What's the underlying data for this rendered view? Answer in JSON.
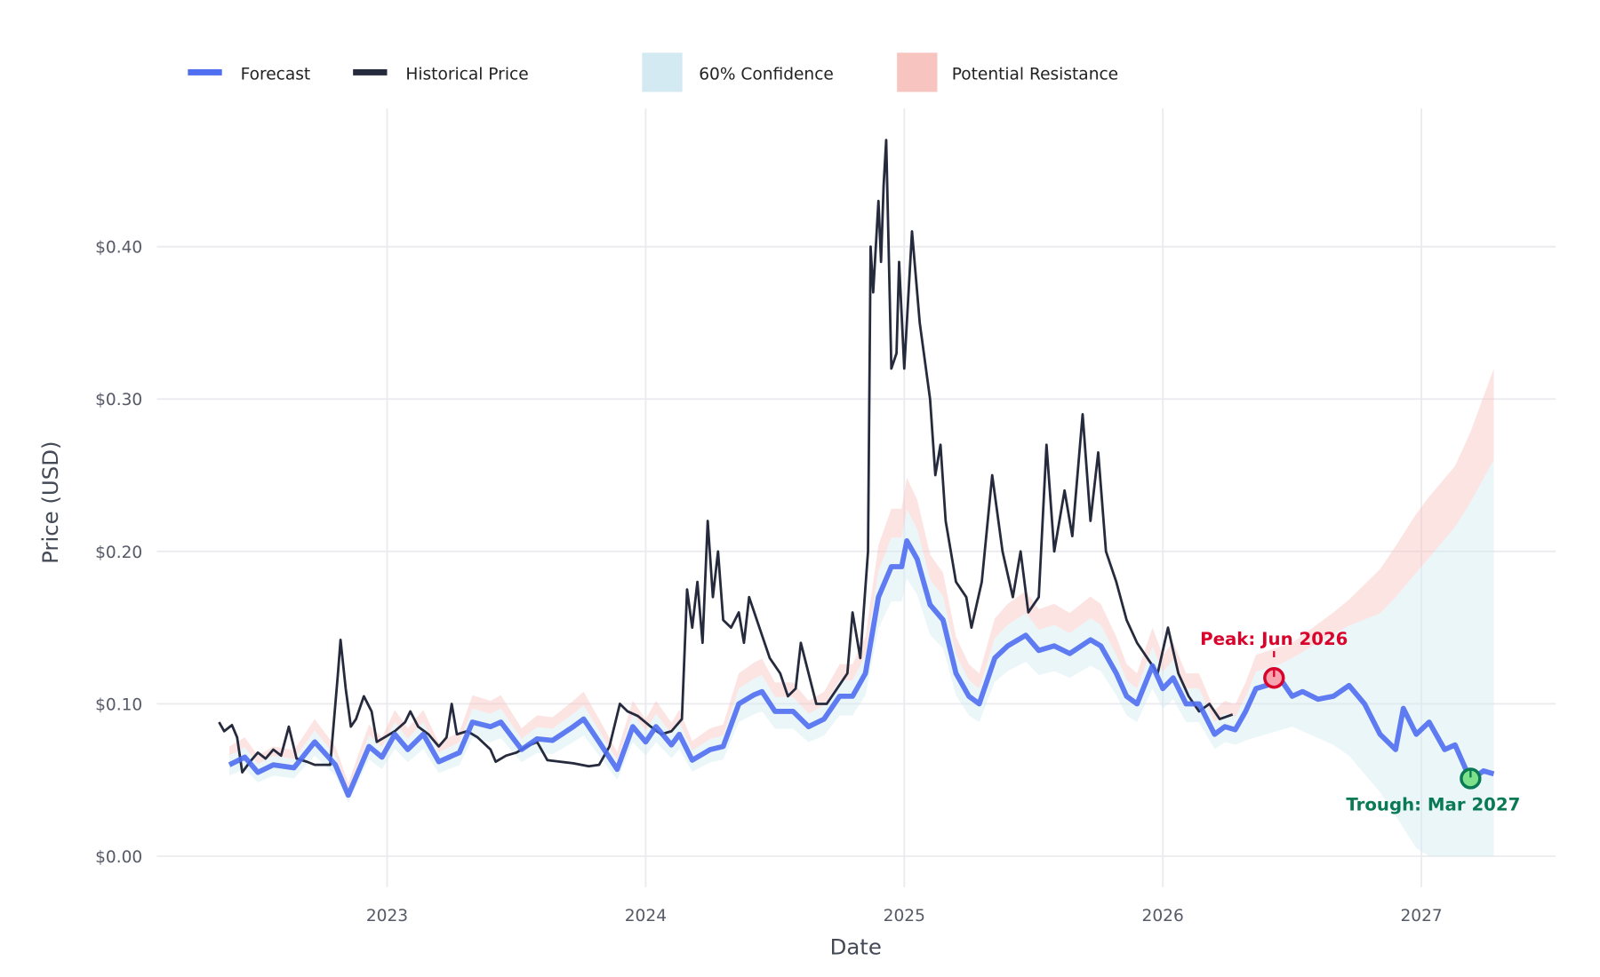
{
  "chart_data": {
    "type": "line",
    "title": "",
    "xlabel": "Date",
    "ylabel": "Price (USD)",
    "xlim": [
      2022.12,
      2027.52
    ],
    "ylim": [
      -0.025,
      0.49
    ],
    "grid": true,
    "legend_placement": "top-left",
    "x_ticks": [
      {
        "value": 2023,
        "label": "2023"
      },
      {
        "value": 2024,
        "label": "2024"
      },
      {
        "value": 2025,
        "label": "2025"
      },
      {
        "value": 2026,
        "label": "2026"
      },
      {
        "value": 2027,
        "label": "2027"
      }
    ],
    "y_ticks": [
      {
        "value": 0.0,
        "label": "$0.00"
      },
      {
        "value": 0.1,
        "label": "$0.10"
      },
      {
        "value": 0.2,
        "label": "$0.20"
      },
      {
        "value": 0.3,
        "label": "$0.30"
      },
      {
        "value": 0.4,
        "label": "$0.40"
      }
    ],
    "legend": [
      {
        "name": "Forecast",
        "kind": "line",
        "color": "#4f6ef0"
      },
      {
        "name": "Historical Price",
        "kind": "line",
        "color": "#262a3d"
      },
      {
        "name": "60% Confidence",
        "kind": "band",
        "color": "#d3eaf2"
      },
      {
        "name": "Potential Resistance",
        "kind": "band",
        "color": "#f8c4c0"
      }
    ],
    "series": [
      {
        "name": "Historical Price",
        "color": "#262a3d",
        "points": [
          [
            2022.35,
            0.088
          ],
          [
            2022.37,
            0.082
          ],
          [
            2022.4,
            0.086
          ],
          [
            2022.42,
            0.078
          ],
          [
            2022.44,
            0.055
          ],
          [
            2022.47,
            0.062
          ],
          [
            2022.5,
            0.068
          ],
          [
            2022.53,
            0.064
          ],
          [
            2022.56,
            0.07
          ],
          [
            2022.59,
            0.066
          ],
          [
            2022.62,
            0.085
          ],
          [
            2022.65,
            0.064
          ],
          [
            2022.69,
            0.062
          ],
          [
            2022.72,
            0.06
          ],
          [
            2022.76,
            0.06
          ],
          [
            2022.78,
            0.06
          ],
          [
            2022.81,
            0.12
          ],
          [
            2022.82,
            0.142
          ],
          [
            2022.84,
            0.11
          ],
          [
            2022.86,
            0.085
          ],
          [
            2022.88,
            0.09
          ],
          [
            2022.91,
            0.105
          ],
          [
            2022.94,
            0.095
          ],
          [
            2022.96,
            0.075
          ],
          [
            2022.99,
            0.078
          ],
          [
            2023.03,
            0.082
          ],
          [
            2023.07,
            0.088
          ],
          [
            2023.09,
            0.095
          ],
          [
            2023.12,
            0.085
          ],
          [
            2023.16,
            0.08
          ],
          [
            2023.2,
            0.072
          ],
          [
            2023.23,
            0.078
          ],
          [
            2023.25,
            0.1
          ],
          [
            2023.27,
            0.08
          ],
          [
            2023.31,
            0.082
          ],
          [
            2023.35,
            0.078
          ],
          [
            2023.4,
            0.07
          ],
          [
            2023.42,
            0.062
          ],
          [
            2023.46,
            0.066
          ],
          [
            2023.5,
            0.068
          ],
          [
            2023.54,
            0.072
          ],
          [
            2023.58,
            0.075
          ],
          [
            2023.62,
            0.063
          ],
          [
            2023.67,
            0.062
          ],
          [
            2023.72,
            0.061
          ],
          [
            2023.78,
            0.059
          ],
          [
            2023.82,
            0.06
          ],
          [
            2023.86,
            0.072
          ],
          [
            2023.9,
            0.1
          ],
          [
            2023.93,
            0.095
          ],
          [
            2023.97,
            0.092
          ],
          [
            2024.02,
            0.085
          ],
          [
            2024.06,
            0.08
          ],
          [
            2024.1,
            0.082
          ],
          [
            2024.14,
            0.09
          ],
          [
            2024.16,
            0.175
          ],
          [
            2024.18,
            0.15
          ],
          [
            2024.2,
            0.18
          ],
          [
            2024.22,
            0.14
          ],
          [
            2024.24,
            0.22
          ],
          [
            2024.26,
            0.17
          ],
          [
            2024.28,
            0.2
          ],
          [
            2024.3,
            0.155
          ],
          [
            2024.33,
            0.15
          ],
          [
            2024.36,
            0.16
          ],
          [
            2024.38,
            0.14
          ],
          [
            2024.4,
            0.17
          ],
          [
            2024.44,
            0.15
          ],
          [
            2024.48,
            0.13
          ],
          [
            2024.52,
            0.12
          ],
          [
            2024.55,
            0.105
          ],
          [
            2024.58,
            0.11
          ],
          [
            2024.6,
            0.14
          ],
          [
            2024.63,
            0.12
          ],
          [
            2024.66,
            0.1
          ],
          [
            2024.7,
            0.1
          ],
          [
            2024.74,
            0.11
          ],
          [
            2024.78,
            0.12
          ],
          [
            2024.8,
            0.16
          ],
          [
            2024.83,
            0.13
          ],
          [
            2024.86,
            0.2
          ],
          [
            2024.87,
            0.4
          ],
          [
            2024.88,
            0.37
          ],
          [
            2024.9,
            0.43
          ],
          [
            2024.91,
            0.39
          ],
          [
            2024.92,
            0.44
          ],
          [
            2024.93,
            0.47
          ],
          [
            2024.95,
            0.32
          ],
          [
            2024.97,
            0.33
          ],
          [
            2024.98,
            0.39
          ],
          [
            2025.0,
            0.32
          ],
          [
            2025.03,
            0.41
          ],
          [
            2025.06,
            0.35
          ],
          [
            2025.1,
            0.3
          ],
          [
            2025.12,
            0.25
          ],
          [
            2025.14,
            0.27
          ],
          [
            2025.16,
            0.22
          ],
          [
            2025.2,
            0.18
          ],
          [
            2025.24,
            0.17
          ],
          [
            2025.26,
            0.15
          ],
          [
            2025.3,
            0.18
          ],
          [
            2025.34,
            0.25
          ],
          [
            2025.38,
            0.2
          ],
          [
            2025.42,
            0.17
          ],
          [
            2025.45,
            0.2
          ],
          [
            2025.48,
            0.16
          ],
          [
            2025.52,
            0.17
          ],
          [
            2025.55,
            0.27
          ],
          [
            2025.58,
            0.2
          ],
          [
            2025.62,
            0.24
          ],
          [
            2025.65,
            0.21
          ],
          [
            2025.69,
            0.29
          ],
          [
            2025.72,
            0.22
          ],
          [
            2025.75,
            0.265
          ],
          [
            2025.78,
            0.2
          ],
          [
            2025.82,
            0.18
          ],
          [
            2025.86,
            0.155
          ],
          [
            2025.9,
            0.14
          ],
          [
            2025.94,
            0.13
          ],
          [
            2025.98,
            0.12
          ],
          [
            2026.02,
            0.15
          ],
          [
            2026.06,
            0.12
          ],
          [
            2026.1,
            0.105
          ],
          [
            2026.14,
            0.095
          ],
          [
            2026.18,
            0.1
          ],
          [
            2026.22,
            0.09
          ],
          [
            2026.27,
            0.093
          ]
        ]
      },
      {
        "name": "Forecast",
        "color": "#4f6ef0",
        "points": [
          [
            2022.39,
            0.06
          ],
          [
            2022.45,
            0.065
          ],
          [
            2022.5,
            0.055
          ],
          [
            2022.56,
            0.06
          ],
          [
            2022.64,
            0.058
          ],
          [
            2022.72,
            0.075
          ],
          [
            2022.8,
            0.06
          ],
          [
            2022.85,
            0.04
          ],
          [
            2022.93,
            0.072
          ],
          [
            2022.98,
            0.065
          ],
          [
            2023.03,
            0.08
          ],
          [
            2023.08,
            0.07
          ],
          [
            2023.14,
            0.08
          ],
          [
            2023.2,
            0.062
          ],
          [
            2023.28,
            0.068
          ],
          [
            2023.33,
            0.088
          ],
          [
            2023.4,
            0.085
          ],
          [
            2023.44,
            0.088
          ],
          [
            2023.52,
            0.07
          ],
          [
            2023.58,
            0.077
          ],
          [
            2023.64,
            0.076
          ],
          [
            2023.72,
            0.085
          ],
          [
            2023.76,
            0.09
          ],
          [
            2023.82,
            0.075
          ],
          [
            2023.89,
            0.057
          ],
          [
            2023.95,
            0.085
          ],
          [
            2024.0,
            0.075
          ],
          [
            2024.04,
            0.085
          ],
          [
            2024.1,
            0.073
          ],
          [
            2024.13,
            0.08
          ],
          [
            2024.18,
            0.063
          ],
          [
            2024.25,
            0.07
          ],
          [
            2024.3,
            0.072
          ],
          [
            2024.36,
            0.1
          ],
          [
            2024.42,
            0.106
          ],
          [
            2024.45,
            0.108
          ],
          [
            2024.5,
            0.095
          ],
          [
            2024.57,
            0.095
          ],
          [
            2024.63,
            0.085
          ],
          [
            2024.69,
            0.09
          ],
          [
            2024.75,
            0.105
          ],
          [
            2024.8,
            0.105
          ],
          [
            2024.85,
            0.12
          ],
          [
            2024.9,
            0.17
          ],
          [
            2024.95,
            0.19
          ],
          [
            2024.99,
            0.19
          ],
          [
            2025.01,
            0.207
          ],
          [
            2025.05,
            0.195
          ],
          [
            2025.1,
            0.165
          ],
          [
            2025.15,
            0.155
          ],
          [
            2025.2,
            0.12
          ],
          [
            2025.25,
            0.105
          ],
          [
            2025.29,
            0.1
          ],
          [
            2025.35,
            0.13
          ],
          [
            2025.4,
            0.138
          ],
          [
            2025.47,
            0.145
          ],
          [
            2025.52,
            0.135
          ],
          [
            2025.58,
            0.138
          ],
          [
            2025.64,
            0.133
          ],
          [
            2025.72,
            0.142
          ],
          [
            2025.76,
            0.138
          ],
          [
            2025.82,
            0.12
          ],
          [
            2025.86,
            0.105
          ],
          [
            2025.9,
            0.1
          ],
          [
            2025.96,
            0.125
          ],
          [
            2026.0,
            0.11
          ],
          [
            2026.04,
            0.117
          ],
          [
            2026.09,
            0.1
          ],
          [
            2026.14,
            0.1
          ],
          [
            2026.2,
            0.08
          ],
          [
            2026.24,
            0.085
          ],
          [
            2026.28,
            0.083
          ],
          [
            2026.32,
            0.095
          ],
          [
            2026.36,
            0.11
          ],
          [
            2026.42,
            0.113
          ],
          [
            2026.46,
            0.115
          ],
          [
            2026.5,
            0.105
          ],
          [
            2026.54,
            0.108
          ],
          [
            2026.6,
            0.103
          ],
          [
            2026.66,
            0.105
          ],
          [
            2026.72,
            0.112
          ],
          [
            2026.78,
            0.1
          ],
          [
            2026.84,
            0.08
          ],
          [
            2026.9,
            0.07
          ],
          [
            2026.93,
            0.097
          ],
          [
            2026.98,
            0.08
          ],
          [
            2027.03,
            0.088
          ],
          [
            2027.09,
            0.07
          ],
          [
            2027.13,
            0.073
          ],
          [
            2027.19,
            0.05
          ],
          [
            2027.24,
            0.056
          ],
          [
            2027.28,
            0.054
          ]
        ]
      }
    ],
    "bands": {
      "history_end": 2026.3,
      "confidence_mult": [
        0.88,
        1.1
      ],
      "resistance_mult": [
        1.1,
        1.2
      ],
      "future_keyframes": [
        [
          2026.3,
          0.075,
          0.095,
          0.105
        ],
        [
          2026.5,
          0.085,
          0.13,
          0.14
        ],
        [
          2026.7,
          0.07,
          0.15,
          0.165
        ],
        [
          2026.85,
          0.04,
          0.16,
          0.19
        ],
        [
          2027.0,
          0.0,
          0.19,
          0.23
        ],
        [
          2027.15,
          0.0,
          0.22,
          0.26
        ],
        [
          2027.28,
          0.0,
          0.26,
          0.32
        ]
      ]
    },
    "annotations": [
      {
        "name": "peak",
        "label": "Peak: Jun 2026",
        "x": 2026.43,
        "y": 0.117,
        "color": "#d9042b",
        "fill": "#f7a3b0"
      },
      {
        "name": "trough",
        "label": "Trough: Mar 2027",
        "x": 2027.19,
        "y": 0.051,
        "color": "#0a7a55",
        "fill": "#7ee08a"
      }
    ]
  }
}
